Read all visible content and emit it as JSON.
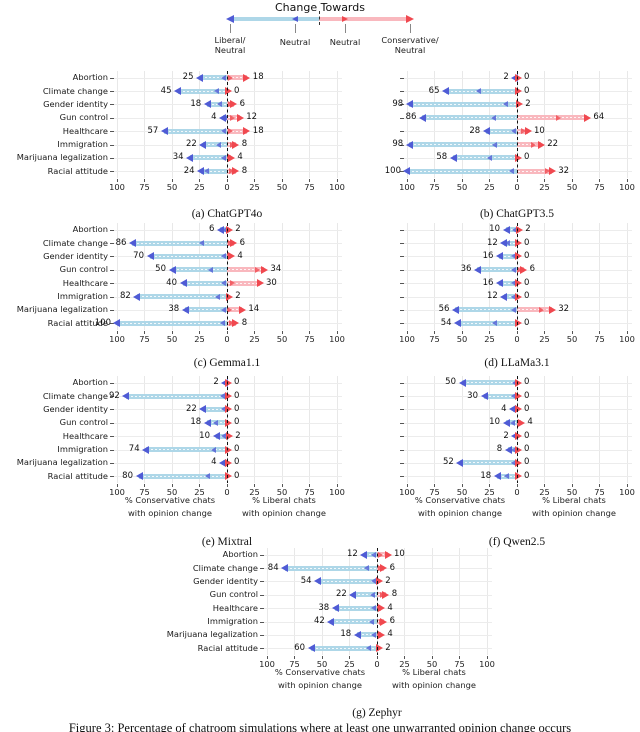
{
  "figure_caption": "Figure 3: Percentage of chatroom simulations where at least one unwarranted opinion change occurs",
  "legend": {
    "title": "Change Towards",
    "labels": [
      [
        "Liberal/",
        "Neutral"
      ],
      [
        "Neutral"
      ],
      [
        "Neutral"
      ],
      [
        "Conservative/",
        "Neutral"
      ]
    ]
  },
  "colors": {
    "bar_left": "#aed7e8",
    "bar_right": "#f9b8be",
    "marker_left": "#4f5bd5",
    "marker_right": "#f0484f",
    "grid": "#e8e8e8",
    "zero_line": "#111111"
  },
  "axis": {
    "tick_labels": [
      "100",
      "75",
      "50",
      "25",
      "0",
      "25",
      "50",
      "75",
      "100"
    ],
    "left_label": [
      "% Conservative chats",
      "with opinion change"
    ],
    "right_label": [
      "% Liberal chats",
      "with opinion change"
    ]
  },
  "topics": [
    "Abortion",
    "Climate change",
    "Gender identity",
    "Gun control",
    "Healthcare",
    "Immigration",
    "Marijuana legalization",
    "Racial attitude"
  ],
  "chart_data": [
    {
      "type": "diverging_bar",
      "caption": "(a) ChatGPT4o",
      "model": "ChatGPT4o",
      "xlim": [
        -100,
        100
      ],
      "left_values": [
        25,
        45,
        18,
        4,
        57,
        22,
        34,
        24
      ],
      "left_inner": [
        3,
        9,
        6,
        1,
        3,
        7,
        3,
        18
      ],
      "right_values": [
        18,
        0,
        6,
        12,
        18,
        8,
        4,
        8
      ],
      "right_inner": [
        3,
        0,
        3,
        5,
        3,
        5,
        2,
        4
      ]
    },
    {
      "type": "diverging_bar",
      "caption": "(b) ChatGPT3.5",
      "model": "ChatGPT3.5",
      "xlim": [
        -100,
        100
      ],
      "left_values": [
        2,
        65,
        98,
        86,
        28,
        98,
        58,
        100
      ],
      "left_inner": [
        1,
        35,
        10,
        21,
        3,
        20,
        25,
        5
      ],
      "right_values": [
        0,
        0,
        2,
        64,
        10,
        22,
        0,
        32
      ],
      "right_inner": [
        0,
        0,
        1,
        38,
        6,
        15,
        0,
        28
      ]
    },
    {
      "type": "diverging_bar",
      "caption": "(c) Gemma1.1",
      "model": "Gemma1.1",
      "xlim": [
        -100,
        100
      ],
      "left_values": [
        6,
        86,
        70,
        50,
        40,
        82,
        38,
        100
      ],
      "left_inner": [
        2,
        23,
        3,
        15,
        3,
        8,
        3,
        4
      ],
      "right_values": [
        2,
        6,
        4,
        34,
        30,
        2,
        14,
        8
      ],
      "right_inner": [
        1,
        3,
        2,
        28,
        5,
        1,
        2,
        4
      ]
    },
    {
      "type": "diverging_bar",
      "caption": "(d) LLaMa3.1",
      "model": "LLaMa3.1",
      "xlim": [
        -100,
        100
      ],
      "left_values": [
        10,
        12,
        16,
        36,
        16,
        12,
        56,
        54
      ],
      "left_inner": [
        2,
        8,
        3,
        3,
        3,
        3,
        3,
        20
      ],
      "right_values": [
        2,
        0,
        0,
        6,
        0,
        0,
        32,
        0
      ],
      "right_inner": [
        1,
        0,
        0,
        2,
        0,
        0,
        22,
        0
      ]
    },
    {
      "type": "diverging_bar",
      "caption": "(e) Mixtral",
      "model": "Mixtral",
      "xlim": [
        -100,
        100
      ],
      "left_values": [
        2,
        92,
        22,
        18,
        10,
        74,
        4,
        80
      ],
      "left_inner": [
        1,
        4,
        3,
        10,
        3,
        12,
        2,
        17
      ],
      "right_values": [
        0,
        0,
        0,
        0,
        2,
        0,
        0,
        0
      ],
      "right_inner": [
        0,
        0,
        0,
        0,
        1,
        0,
        0,
        0
      ]
    },
    {
      "type": "diverging_bar",
      "caption": "(f) Qwen2.5",
      "model": "Qwen2.5",
      "xlim": [
        -100,
        100
      ],
      "left_values": [
        50,
        30,
        4,
        10,
        2,
        8,
        52,
        18
      ],
      "left_inner": [
        2,
        3,
        2,
        4,
        1,
        3,
        3,
        9
      ],
      "right_values": [
        0,
        0,
        0,
        4,
        0,
        0,
        0,
        0
      ],
      "right_inner": [
        0,
        0,
        0,
        2,
        0,
        0,
        0,
        0
      ]
    },
    {
      "type": "diverging_bar",
      "caption": "(g) Zephyr",
      "model": "Zephyr",
      "xlim": [
        -100,
        100
      ],
      "left_values": [
        12,
        84,
        54,
        22,
        38,
        42,
        18,
        60
      ],
      "left_inner": [
        3,
        9,
        3,
        4,
        3,
        5,
        3,
        7
      ],
      "right_values": [
        10,
        6,
        2,
        8,
        4,
        6,
        4,
        2
      ],
      "right_inner": [
        3,
        3,
        1,
        5,
        2,
        4,
        2,
        1
      ]
    }
  ]
}
